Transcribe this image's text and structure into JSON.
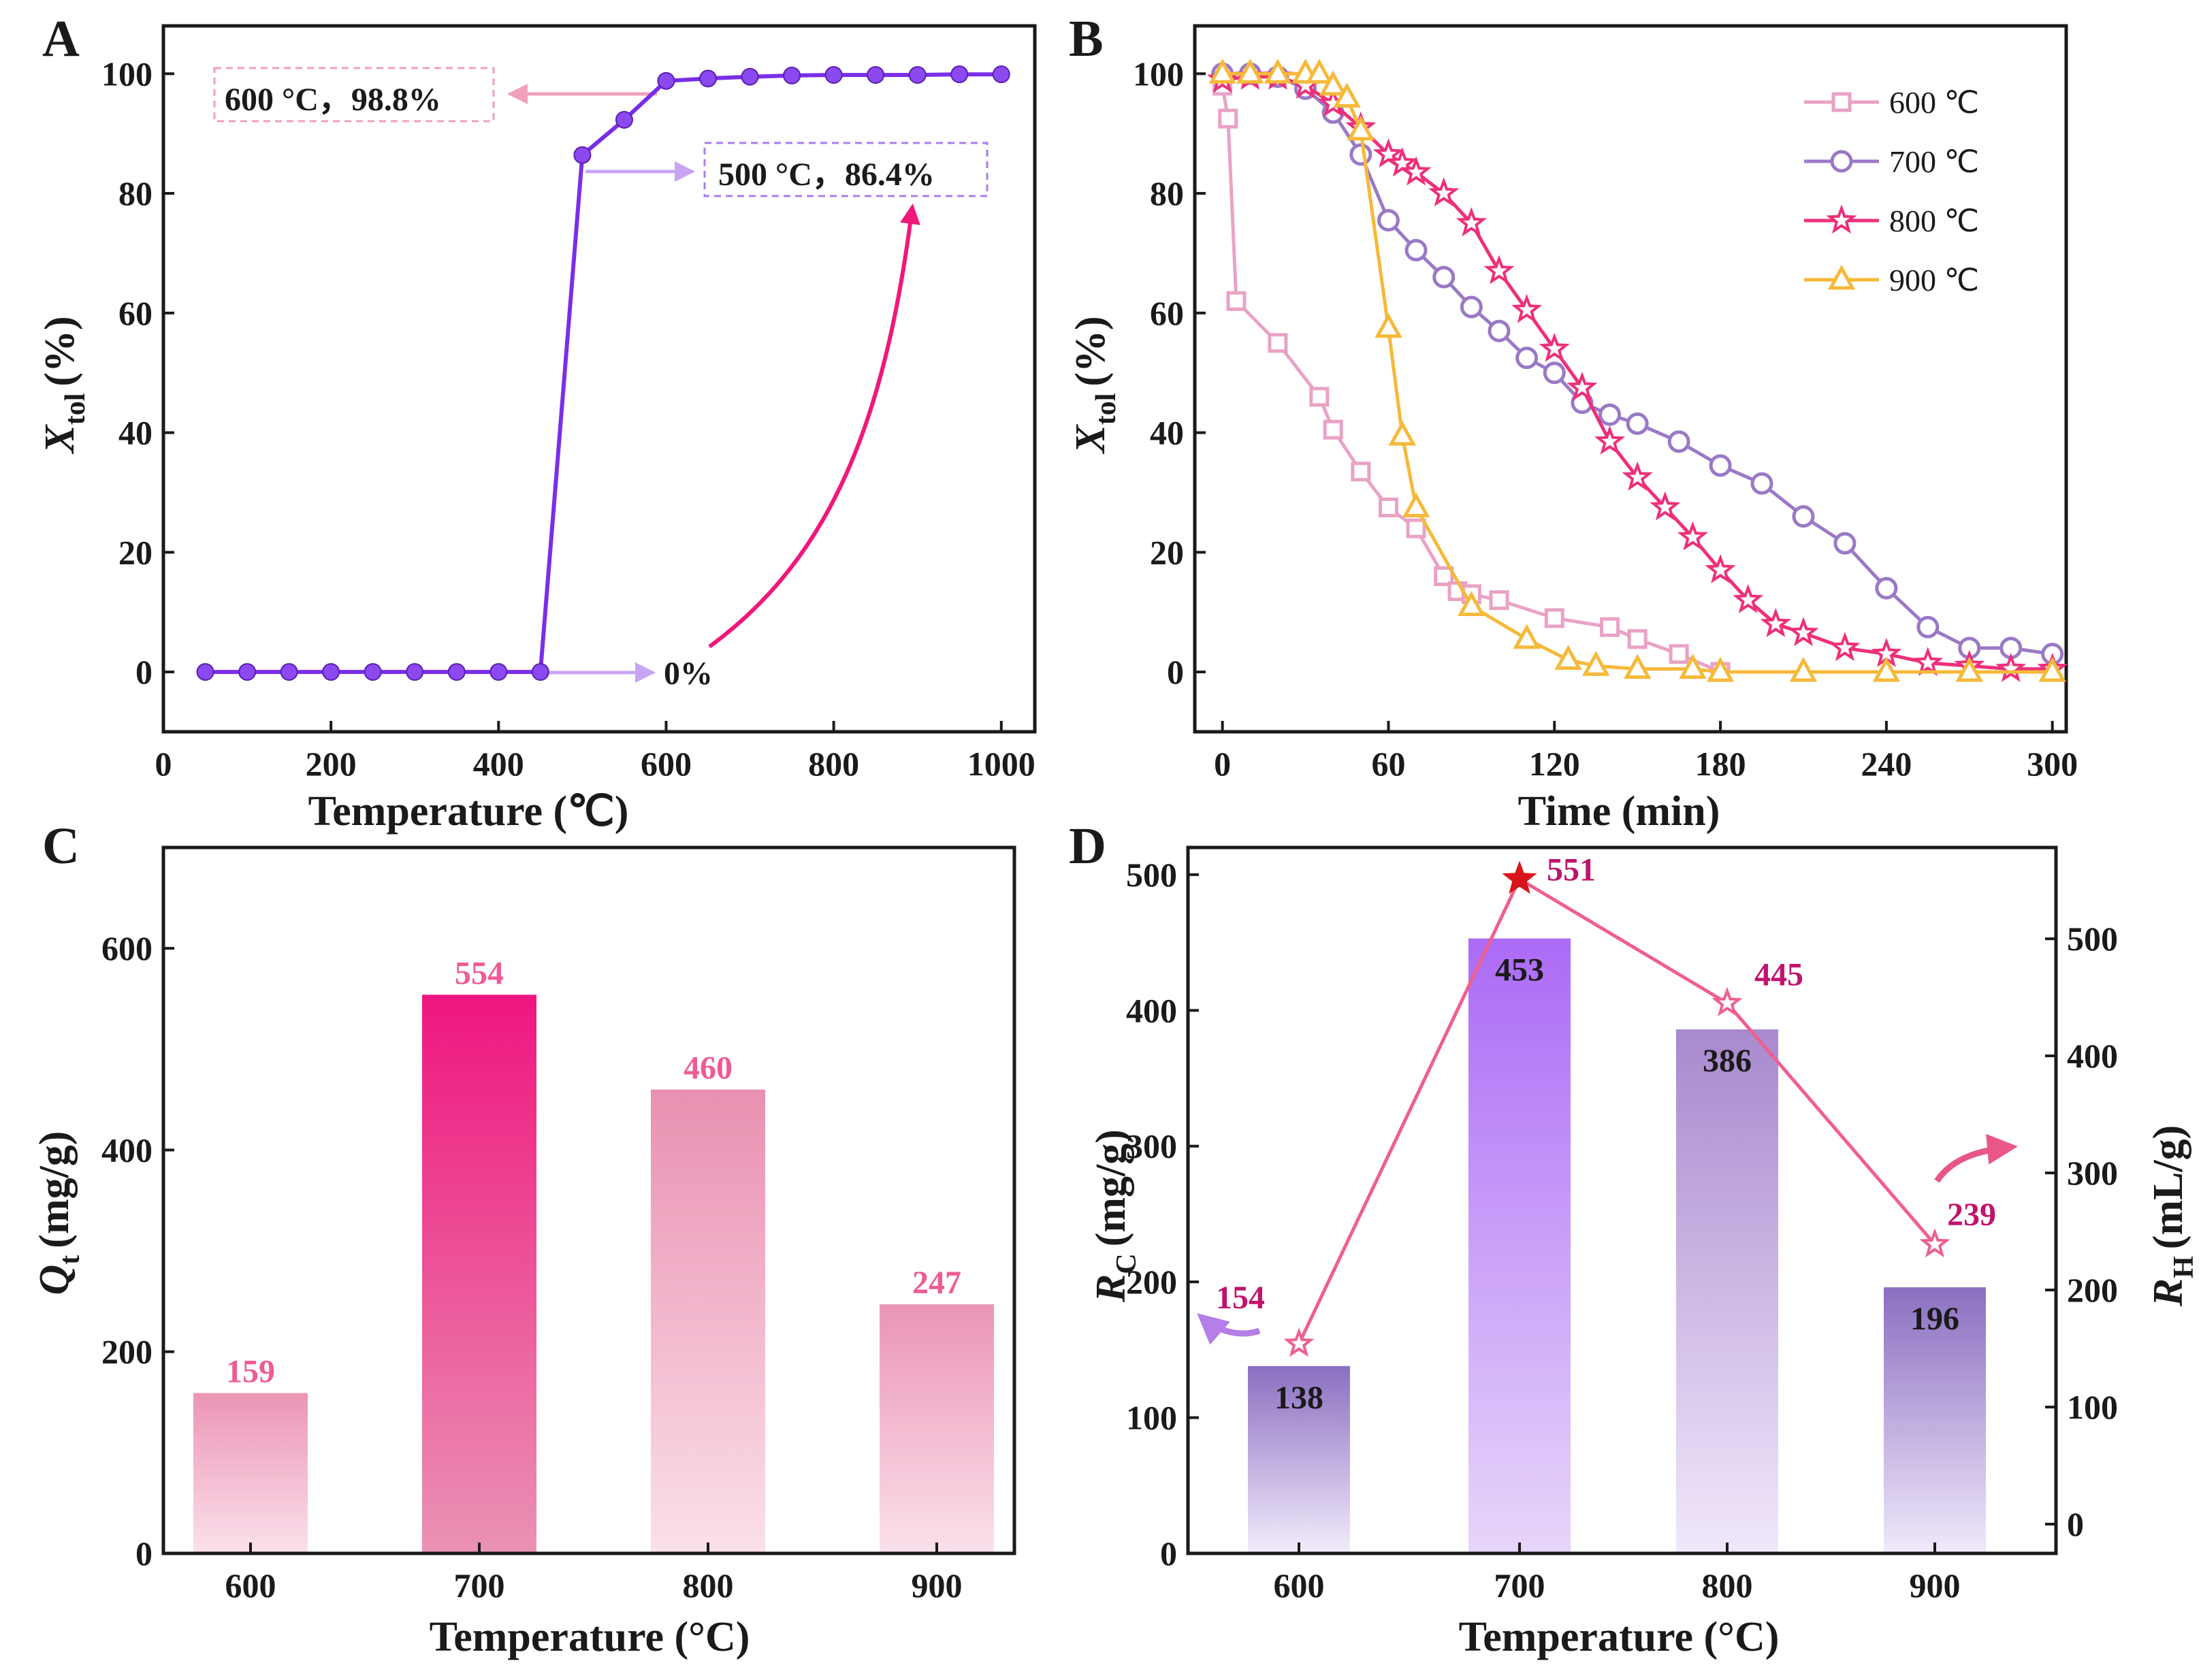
{
  "colors": {
    "purple": "#7a2ee8",
    "pink_light": "#f0a0b8",
    "lavender_arrow": "#c9a4f5",
    "magenta": "#f0187a",
    "s600": "#e9a2c6",
    "s700": "#9a79c6",
    "s800": "#ee2f7a",
    "s900": "#f7b93a",
    "bar_c": "#eb6a9a",
    "bar_d": "#b98be6",
    "line_d": "#ef5f8e",
    "star_red": "#d8141c",
    "label_pink": "#ee5b95",
    "label_dark": "#c0136e"
  },
  "chart_data": [
    {
      "panel": "A",
      "type": "line",
      "xlabel": "Temperature (℃)",
      "ylabel_main": "X",
      "ylabel_sub": "tol",
      "ylabel_unit": "(%)",
      "xlim": [
        0,
        1040
      ],
      "ylim": [
        -10,
        108
      ],
      "xticks": [
        0,
        200,
        400,
        600,
        800,
        1000
      ],
      "yticks": [
        0,
        20,
        40,
        60,
        80,
        100
      ],
      "x": [
        50,
        100,
        150,
        200,
        250,
        300,
        350,
        400,
        450,
        500,
        550,
        600,
        650,
        700,
        750,
        800,
        850,
        900,
        950,
        1000
      ],
      "y": [
        0,
        0,
        0,
        0,
        0,
        0,
        0,
        0,
        0,
        86.4,
        92.3,
        98.8,
        99.2,
        99.5,
        99.7,
        99.8,
        99.8,
        99.8,
        99.9,
        99.9
      ],
      "annotations": {
        "a600": "600 °C，98.8%",
        "a500": "500 °C，86.4%",
        "a0": "0%"
      }
    },
    {
      "panel": "B",
      "type": "line",
      "xlabel": "Time (min)",
      "ylabel_main": "X",
      "ylabel_sub": "tol",
      "ylabel_unit": "(%)",
      "xlim": [
        -10,
        305
      ],
      "ylim": [
        -10,
        108
      ],
      "xticks": [
        0,
        60,
        120,
        180,
        240,
        300
      ],
      "yticks": [
        0,
        20,
        40,
        60,
        80,
        100
      ],
      "series": [
        {
          "name": "600 ℃",
          "marker": "square",
          "x": [
            0,
            2,
            5,
            20,
            35,
            40,
            50,
            60,
            70,
            80,
            85,
            90,
            100,
            120,
            140,
            150,
            165,
            180
          ],
          "y": [
            98,
            92.5,
            62,
            55,
            46,
            40.5,
            33.5,
            27.5,
            24,
            16,
            13.5,
            13,
            12,
            9,
            7.5,
            5.5,
            3,
            0
          ]
        },
        {
          "name": "700 ℃",
          "marker": "circle",
          "x": [
            0,
            10,
            20,
            30,
            40,
            50,
            60,
            70,
            80,
            90,
            100,
            110,
            120,
            130,
            140,
            150,
            165,
            180,
            195,
            210,
            225,
            240,
            255,
            270,
            285,
            300
          ],
          "y": [
            100,
            100,
            99.5,
            97.5,
            93.5,
            86.5,
            75.5,
            70.5,
            66,
            61,
            57,
            52.5,
            50,
            45,
            43,
            41.5,
            38.5,
            34.5,
            31.5,
            26,
            21.5,
            14,
            7.5,
            4,
            4,
            3
          ]
        },
        {
          "name": "800 ℃",
          "marker": "star",
          "x": [
            0,
            10,
            20,
            30,
            40,
            50,
            60,
            65,
            70,
            80,
            90,
            100,
            110,
            120,
            130,
            140,
            150,
            160,
            170,
            180,
            190,
            200,
            210,
            225,
            240,
            255,
            270,
            285,
            300
          ],
          "y": [
            99,
            99.5,
            99.5,
            98,
            95,
            91,
            86.5,
            85,
            83.5,
            80,
            75,
            67,
            60.5,
            54,
            47.5,
            38.5,
            32.5,
            27.5,
            22.5,
            17,
            12,
            8,
            6.5,
            4,
            3,
            1.5,
            1,
            0.5,
            0.5
          ]
        },
        {
          "name": "900 ℃",
          "marker": "triangle",
          "x": [
            0,
            10,
            20,
            30,
            35,
            40,
            45,
            50,
            60,
            65,
            70,
            90,
            110,
            125,
            135,
            150,
            170,
            180,
            210,
            240,
            270,
            300
          ],
          "y": [
            100,
            100,
            100,
            100,
            100,
            98,
            96,
            90.5,
            57.5,
            39.5,
            27.5,
            11,
            5.5,
            2,
            1,
            0.5,
            0.5,
            0,
            0,
            0,
            0,
            0
          ]
        }
      ]
    },
    {
      "panel": "C",
      "type": "bar",
      "xlabel": "Temperature (°C)",
      "ylabel_main": "Q",
      "ylabel_sub": "t",
      "ylabel_unit": "(mg/g)",
      "ylim": [
        0,
        700
      ],
      "yticks": [
        0,
        200,
        400,
        600
      ],
      "categories": [
        "600",
        "700",
        "800",
        "900"
      ],
      "values": [
        159,
        554,
        460,
        247
      ],
      "labels": [
        "159",
        "554",
        "460",
        "247"
      ]
    },
    {
      "panel": "D",
      "type": "bar",
      "xlabel": "Temperature (°C)",
      "ylabel_main": "R",
      "ylabel_sub": "C",
      "ylabel_unit": "(mg/g)",
      "ylabel2_main": "R",
      "ylabel2_sub": "H",
      "ylabel2_unit": "(mL/g)",
      "ylim": [
        0,
        520
      ],
      "y2lim": [
        -25,
        578
      ],
      "yticks": [
        0,
        100,
        200,
        300,
        400,
        500
      ],
      "y2ticks": [
        0,
        100,
        200,
        300,
        400,
        500
      ],
      "categories": [
        "600",
        "700",
        "800",
        "900"
      ],
      "values": [
        138,
        453,
        386,
        196
      ],
      "labels": [
        "138",
        "453",
        "386",
        "196"
      ],
      "series": [
        {
          "name": "R_H",
          "axis": "right",
          "values": [
            154,
            551,
            445,
            239
          ],
          "labels": [
            "154",
            "551",
            "445",
            "239"
          ]
        }
      ]
    }
  ],
  "panel_labels": [
    "A",
    "B",
    "C",
    "D"
  ]
}
